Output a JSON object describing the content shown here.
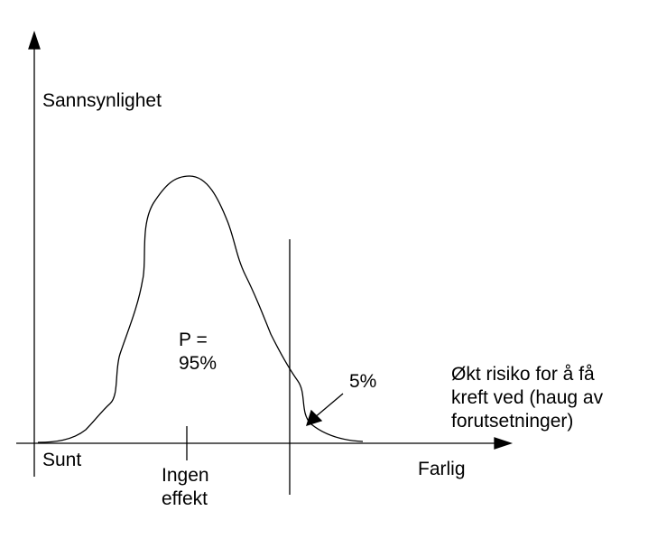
{
  "y_axis_label": "Sannsynlighet",
  "x_axis_label": "Økt risiko for å få\nkreft ved (haug av\nforutsetninger)",
  "x_left_label": "Sunt",
  "x_middle_label": "Ingen\neffekt",
  "x_right_label": "Farlig",
  "probability_label": "P =\n95%",
  "tail_label": "5%"
}
